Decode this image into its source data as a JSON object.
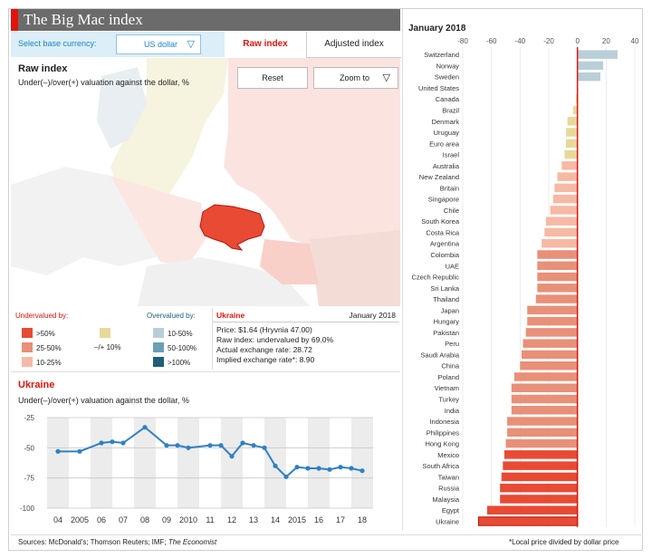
{
  "header": {
    "title": "The Big Mac index"
  },
  "controls": {
    "base_label": "Select base currency:",
    "base_value": "US dollar",
    "tab_raw": "Raw index",
    "tab_adjusted": "Adjusted index"
  },
  "map": {
    "title": "Raw index",
    "subtitle": "Under(–)/over(+) valuation against the dollar, %",
    "reset_label": "Reset",
    "zoom_label": "Zoom to"
  },
  "legend": {
    "undervalued": "Undervalued by:",
    "overvalued": "Overvalued by:",
    "items": [
      {
        "label": ">50%",
        "color": "#e84a34"
      },
      {
        "label": "25-50%",
        "color": "#e89078"
      },
      {
        "label": "10-25%",
        "color": "#f6b9a4"
      },
      {
        "label": "–/+ 10%",
        "color": "#e8d89a"
      },
      {
        "label": "10-50%",
        "color": "#b9cfd8"
      },
      {
        "label": "50-100%",
        "color": "#6a9fb5"
      },
      {
        "label": ">100%",
        "color": "#1f5f7a"
      }
    ]
  },
  "info": {
    "country": "Ukraine",
    "date": "January 2018",
    "price": "Price: $1.64 (Hryvnia 47.00)",
    "raw": "Raw index: undervalued by 69.0%",
    "actual": "Actual exchange rate: 28.72",
    "implied": "Implied exchange rate*: 8.90"
  },
  "line_chart": {
    "title": "Ukraine",
    "subtitle": "Under(–)/over(+) valuation against the dollar, %",
    "x_labels": [
      "04",
      "2005",
      "06",
      "07",
      "08",
      "09",
      "2010",
      "11",
      "12",
      "13",
      "14",
      "2015",
      "16",
      "17",
      "18"
    ],
    "y_ticks": [
      "-25",
      "-50",
      "-75",
      "-100"
    ]
  },
  "chart_data": [
    {
      "type": "line",
      "title": "Ukraine",
      "ylabel": "Under(–)/over(+) valuation against the dollar, %",
      "ylim": [
        -100,
        -25
      ],
      "x": [
        2004.0,
        2005.0,
        2006.0,
        2006.5,
        2007.0,
        2008.0,
        2009.0,
        2009.5,
        2010.0,
        2011.0,
        2011.5,
        2012.0,
        2012.5,
        2013.0,
        2013.5,
        2014.0,
        2014.5,
        2015.0,
        2015.5,
        2016.0,
        2016.5,
        2017.0,
        2017.5,
        2018.0
      ],
      "values": [
        -53,
        -53,
        -46,
        -45,
        -46,
        -33,
        -48,
        -48,
        -50,
        -48,
        -48,
        -57,
        -46,
        -48,
        -50,
        -65,
        -74,
        -66,
        -67,
        -67,
        -68,
        -66,
        -67,
        -69
      ]
    },
    {
      "type": "bar",
      "title": "January 2018",
      "xlim": [
        -80,
        40
      ],
      "x_ticks": [
        -80,
        -60,
        -40,
        -20,
        0,
        20,
        40
      ],
      "categories": [
        "Switzerland",
        "Norway",
        "Sweden",
        "United States",
        "Canada",
        "Brazil",
        "Denmark",
        "Uruguay",
        "Euro area",
        "Israel",
        "Australia",
        "New Zealand",
        "Britain",
        "Singapore",
        "Chile",
        "South Korea",
        "Costa Rica",
        "Argentina",
        "Colombia",
        "UAE",
        "Czech Republic",
        "Sri Lanka",
        "Thailand",
        "Japan",
        "Hungary",
        "Pakistan",
        "Peru",
        "Saudi Arabia",
        "China",
        "Poland",
        "Vietnam",
        "Turkey",
        "India",
        "Indonesia",
        "Philippines",
        "Hong Kong",
        "Mexico",
        "South Africa",
        "Taiwan",
        "Russia",
        "Malaysia",
        "Egypt",
        "Ukraine"
      ],
      "values": [
        28,
        18,
        16,
        0,
        -1,
        -3,
        -7,
        -8,
        -8,
        -9,
        -11,
        -14,
        -16,
        -17,
        -19,
        -22,
        -23,
        -25,
        -28,
        -28,
        -28,
        -28,
        -29,
        -35,
        -35,
        -36,
        -38,
        -39,
        -40,
        -44,
        -46,
        -46,
        -46,
        -49,
        -49,
        -50,
        -51,
        -52,
        -53,
        -54,
        -54,
        -63,
        -69
      ]
    }
  ],
  "footer": {
    "sources_prefix": "Sources: McDonald's; Thomson Reuters; IMF; ",
    "sources_italic": "The Economist",
    "note": "*Local price divided by dollar price"
  }
}
